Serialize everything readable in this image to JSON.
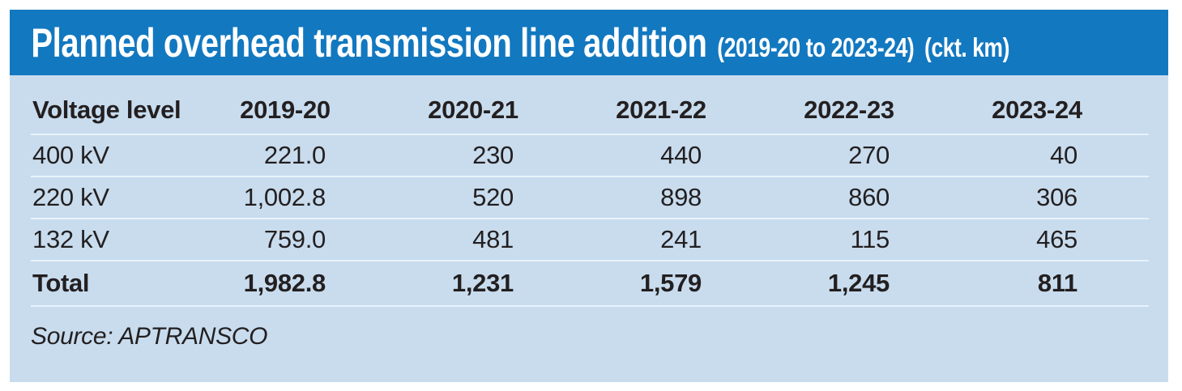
{
  "title": {
    "main": "Planned overhead transmission line addition",
    "range": "(2019-20 to 2023-24)",
    "unit": "(ckt. km)"
  },
  "table": {
    "columns": [
      "Voltage level",
      "2019-20",
      "2020-21",
      "2021-22",
      "2022-23",
      "2023-24"
    ],
    "rows": [
      {
        "label": "400 kV",
        "values": [
          "221.0",
          "230",
          "440",
          "270",
          "40"
        ]
      },
      {
        "label": "220 kV",
        "values": [
          "1,002.8",
          "520",
          "898",
          "860",
          "306"
        ]
      },
      {
        "label": "132 kV",
        "values": [
          "759.0",
          "481",
          "241",
          "115",
          "465"
        ]
      },
      {
        "label": "Total",
        "values": [
          "1,982.8",
          "1,231",
          "1,579",
          "1,245",
          "811"
        ]
      }
    ]
  },
  "source_text": "Source: APTRANSCO",
  "colors": {
    "title_bar": "#1278c0",
    "panel_background": "#c8dcee",
    "separator_line": "#5697cd",
    "separator_highlight": "#e9f2fb",
    "title_text": "#ffffff",
    "body_text": "#231f20"
  },
  "chart_data": {
    "type": "table",
    "title": "Planned overhead transmission line addition (2019-20 to 2023-24) (ckt. km)",
    "columns": [
      "Voltage level",
      "2019-20",
      "2020-21",
      "2021-22",
      "2022-23",
      "2023-24"
    ],
    "rows": [
      [
        "400 kV",
        221.0,
        230,
        440,
        270,
        40
      ],
      [
        "220 kV",
        1002.8,
        520,
        898,
        860,
        306
      ],
      [
        "132 kV",
        759.0,
        481,
        241,
        115,
        465
      ],
      [
        "Total",
        1982.8,
        1231,
        1579,
        1245,
        811
      ]
    ],
    "units": "ckt. km",
    "source": "APTRANSCO"
  }
}
